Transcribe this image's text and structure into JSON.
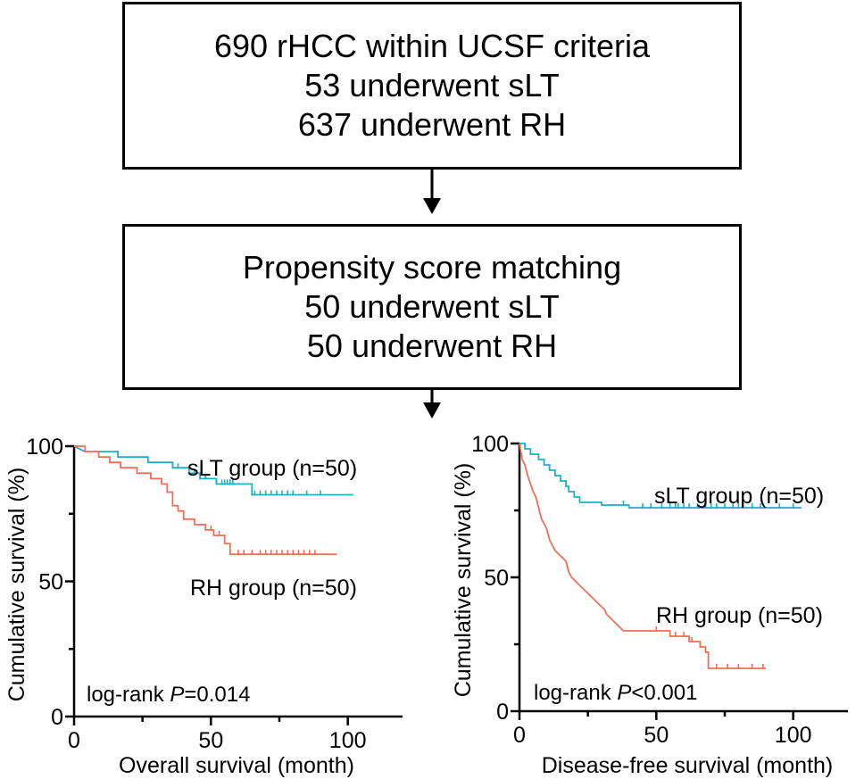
{
  "flow": {
    "box1": {
      "line1": "690 rHCC within UCSF criteria",
      "line2": "53 underwent sLT",
      "line3": "637 underwent RH"
    },
    "box2": {
      "line1": "Propensity score matching",
      "line2": "50 underwent sLT",
      "line3": "50 underwent RH"
    }
  },
  "colors": {
    "slt": "#1bb1c4",
    "rh": "#ee7058",
    "axis": "#000000"
  },
  "chart_data": [
    {
      "type": "line",
      "title": "",
      "xlabel": "Overall survival (month)",
      "ylabel": "Cumulative survival (%)",
      "xlim": [
        0,
        120
      ],
      "ylim": [
        0,
        100
      ],
      "xticks": [
        0,
        50,
        100
      ],
      "yticks": [
        0,
        50,
        100
      ],
      "annotation_prefix": "log-rank ",
      "annotation_p": "P",
      "annotation_value": "=0.014",
      "series": [
        {
          "name": "sLT group (n=50)",
          "points": [
            [
              0,
              100
            ],
            [
              4,
              98
            ],
            [
              16,
              98
            ],
            [
              16,
              96
            ],
            [
              27,
              96
            ],
            [
              27,
              94
            ],
            [
              36,
              94
            ],
            [
              36,
              92
            ],
            [
              42,
              92
            ],
            [
              42,
              90
            ],
            [
              46,
              90
            ],
            [
              46,
              88
            ],
            [
              52,
              88
            ],
            [
              52,
              86
            ],
            [
              65,
              86
            ],
            [
              65,
              82
            ],
            [
              102,
              82
            ]
          ],
          "censor_x": [
            36,
            38,
            44,
            46,
            48,
            52,
            54,
            55,
            56,
            57,
            58,
            66,
            68,
            70,
            72,
            74,
            76,
            78,
            80,
            85,
            90
          ]
        },
        {
          "name": "RH group (n=50)",
          "points": [
            [
              0,
              100
            ],
            [
              4,
              100
            ],
            [
              4,
              98
            ],
            [
              9,
              98
            ],
            [
              9,
              96
            ],
            [
              13,
              96
            ],
            [
              13,
              94
            ],
            [
              17,
              94
            ],
            [
              17,
              92
            ],
            [
              23,
              92
            ],
            [
              23,
              90
            ],
            [
              28,
              90
            ],
            [
              28,
              88
            ],
            [
              32,
              88
            ],
            [
              32,
              86
            ],
            [
              34,
              86
            ],
            [
              34,
              83
            ],
            [
              36,
              83
            ],
            [
              36,
              78
            ],
            [
              38,
              78
            ],
            [
              38,
              76
            ],
            [
              40,
              76
            ],
            [
              40,
              73
            ],
            [
              44,
              73
            ],
            [
              44,
              71
            ],
            [
              48,
              71
            ],
            [
              48,
              69
            ],
            [
              51,
              69
            ],
            [
              51,
              67
            ],
            [
              55,
              67
            ],
            [
              55,
              64
            ],
            [
              57,
              64
            ],
            [
              57,
              60
            ],
            [
              96,
              60
            ]
          ],
          "censor_x": [
            50,
            53,
            60,
            62,
            65,
            68,
            70,
            72,
            74,
            76,
            78,
            80,
            82,
            84,
            86,
            88
          ]
        }
      ]
    },
    {
      "type": "line",
      "title": "",
      "xlabel": "Disease-free survival (month)",
      "ylabel": "Cumulative survival (%)",
      "xlim": [
        0,
        120
      ],
      "ylim": [
        0,
        100
      ],
      "xticks": [
        0,
        50,
        100
      ],
      "yticks": [
        0,
        50,
        100
      ],
      "annotation_prefix": "log-rank ",
      "annotation_p": "P",
      "annotation_value": "<0.001",
      "series": [
        {
          "name": "sLT group (n=50)",
          "points": [
            [
              0,
              100
            ],
            [
              2,
              100
            ],
            [
              2,
              98
            ],
            [
              4,
              98
            ],
            [
              4,
              96
            ],
            [
              7,
              96
            ],
            [
              7,
              94
            ],
            [
              9,
              94
            ],
            [
              9,
              92
            ],
            [
              11,
              92
            ],
            [
              11,
              90
            ],
            [
              13,
              90
            ],
            [
              13,
              88
            ],
            [
              15,
              88
            ],
            [
              15,
              86
            ],
            [
              17,
              86
            ],
            [
              17,
              84
            ],
            [
              18,
              84
            ],
            [
              18,
              82
            ],
            [
              20,
              82
            ],
            [
              20,
              80
            ],
            [
              22,
              80
            ],
            [
              22,
              78
            ],
            [
              30,
              78
            ],
            [
              30,
              77
            ],
            [
              40,
              77
            ],
            [
              40,
              76
            ],
            [
              103,
              76
            ]
          ],
          "censor_x": [
            38,
            45,
            48,
            52,
            55,
            57,
            58,
            60,
            62,
            65,
            68,
            70,
            72,
            75,
            78,
            80,
            85,
            88,
            95,
            100
          ]
        },
        {
          "name": "RH group (n=50)",
          "points": [
            [
              0,
              100
            ],
            [
              1,
              94
            ],
            [
              2,
              92
            ],
            [
              3,
              88
            ],
            [
              4,
              85
            ],
            [
              5,
              82
            ],
            [
              6,
              80
            ],
            [
              7,
              76
            ],
            [
              8,
              72
            ],
            [
              9,
              70
            ],
            [
              10,
              68
            ],
            [
              11,
              64
            ],
            [
              12,
              62
            ],
            [
              13,
              60
            ],
            [
              15,
              58
            ],
            [
              17,
              56
            ],
            [
              18,
              52
            ],
            [
              19,
              50
            ],
            [
              21,
              48
            ],
            [
              23,
              46
            ],
            [
              25,
              44
            ],
            [
              27,
              42
            ],
            [
              29,
              40
            ],
            [
              31,
              38
            ],
            [
              32,
              36
            ],
            [
              34,
              34
            ],
            [
              36,
              32
            ],
            [
              38,
              30
            ],
            [
              55,
              30
            ],
            [
              55,
              28
            ],
            [
              62,
              28
            ],
            [
              62,
              26
            ],
            [
              66,
              26
            ],
            [
              66,
              24
            ],
            [
              68,
              24
            ],
            [
              68,
              22
            ],
            [
              69,
              22
            ],
            [
              69,
              16
            ],
            [
              90,
              16
            ]
          ],
          "censor_x": [
            50,
            57,
            60,
            63,
            66,
            72,
            76,
            80,
            85,
            89
          ]
        }
      ]
    }
  ]
}
